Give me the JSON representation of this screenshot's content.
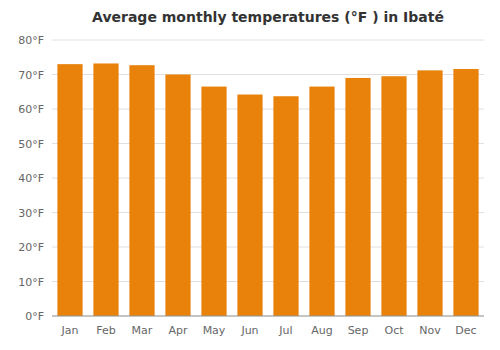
{
  "chart_data": {
    "type": "bar",
    "title": "Average monthly temperatures (°F ) in Ibaté",
    "categories": [
      "Jan",
      "Feb",
      "Mar",
      "Apr",
      "May",
      "Jun",
      "Jul",
      "Aug",
      "Sep",
      "Oct",
      "Nov",
      "Dec"
    ],
    "values": [
      73.0,
      73.2,
      72.7,
      70.0,
      66.5,
      64.2,
      63.7,
      66.5,
      69.0,
      69.5,
      71.2,
      71.6
    ],
    "color": "#E8820A",
    "ylim": [
      0,
      80
    ],
    "yticks": [
      {
        "value": 0,
        "label": "0°F"
      },
      {
        "value": 10,
        "label": "10°F"
      },
      {
        "value": 20,
        "label": "20°F"
      },
      {
        "value": 30,
        "label": "30°F"
      },
      {
        "value": 40,
        "label": "40°F"
      },
      {
        "value": 50,
        "label": "50°F"
      },
      {
        "value": 60,
        "label": "60°F"
      },
      {
        "value": 70,
        "label": "70°F"
      },
      {
        "value": 80,
        "label": "80°F"
      }
    ],
    "grid": true
  }
}
